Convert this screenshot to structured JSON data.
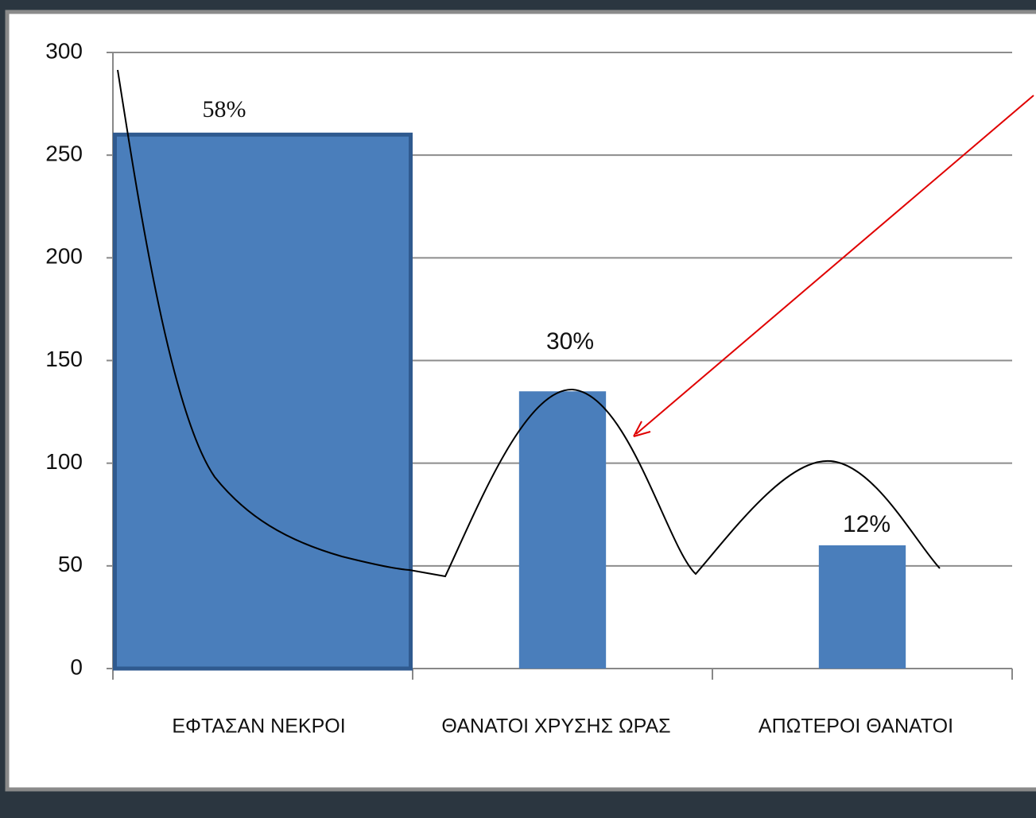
{
  "chart_data": {
    "type": "bar",
    "categories": [
      "ΕΦΤΑΣΑΝ ΝΕΚΡΟΙ",
      "ΘΑΝΑΤΟΙ ΧΡΥΣΗΣ ΩΡΑΣ",
      "ΑΠΩΤΕΡΟΙ ΘΑΝΑΤΟΙ"
    ],
    "values": [
      260,
      135,
      60
    ],
    "annotations": [
      "58%",
      "30%",
      "12%"
    ],
    "color": "#4a7ebb",
    "ylim": [
      0,
      300
    ],
    "yticks": [
      0,
      50,
      100,
      150,
      200,
      250,
      300
    ],
    "grid": true
  }
}
